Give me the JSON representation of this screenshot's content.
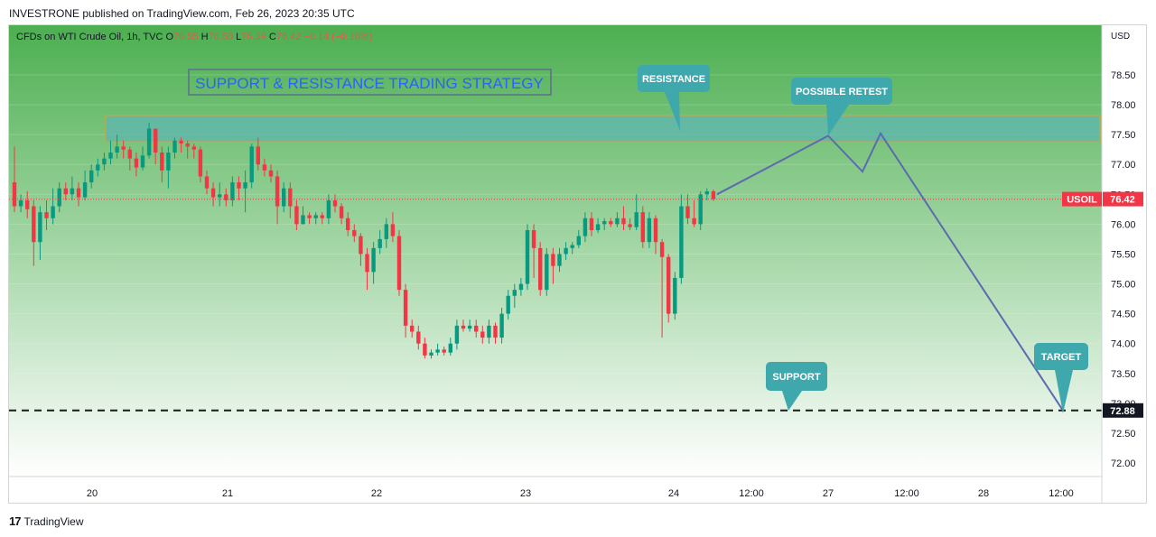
{
  "header": {
    "published": "INVESTRONE published on TradingView.com, Feb 26, 2023 20:35 UTC"
  },
  "symbol": {
    "name": "CFDs on WTI Crude Oil, 1h, TVC",
    "o_label": "O",
    "o_value": "76.55",
    "h_label": "H",
    "h_value": "76.58",
    "l_label": "L",
    "l_value": "76.39",
    "c_label": "C",
    "c_value": "76.42",
    "change": "−0.14 (−0.18%)"
  },
  "currency": "USD",
  "footer": {
    "brand": "TradingView",
    "logo_icon": "tradingview-logo-icon"
  },
  "colors": {
    "up": "#089981",
    "down": "#f23645",
    "bg_top": "#4caf50",
    "bg_bottom": "#ffffff",
    "zone_fill": "#5fb6b0",
    "zone_border": "#e0a030",
    "callout": "#3fa8ad",
    "projection": "#5c6bb0",
    "title_text": "#2962ff"
  },
  "chart_data": {
    "type": "candlestick",
    "symbol": "USOIL",
    "ylim": [
      71.75,
      79.25
    ],
    "y_ticks": [
      "72.00",
      "72.50",
      "73.00",
      "73.50",
      "74.00",
      "74.50",
      "75.00",
      "75.50",
      "76.00",
      "76.50",
      "77.00",
      "77.50",
      "78.00",
      "78.50"
    ],
    "x_ticks": [
      "20",
      "21",
      "22",
      "23",
      "24",
      "12:00",
      "27",
      "12:00",
      "28",
      "12:00"
    ],
    "last_price": {
      "label": "USOIL",
      "value": "76.42",
      "num": 76.42
    },
    "target_price": {
      "value": "72.88",
      "num": 72.88
    },
    "resistance_zone": [
      77.38,
      77.82
    ],
    "title_box": "SUPPORT & RESISTANCE TRADING STRATEGY",
    "annotations": [
      "RESISTANCE",
      "POSSIBLE RETEST",
      "SUPPORT",
      "TARGET"
    ],
    "projection_path": [
      76.5,
      77.48,
      76.88,
      77.52,
      72.88
    ],
    "candles": [
      [
        76.7,
        76.3,
        77.3,
        76.2
      ],
      [
        76.3,
        76.4,
        76.5,
        76.2
      ],
      [
        76.4,
        76.25,
        76.55,
        76.1
      ],
      [
        76.3,
        75.7,
        76.4,
        75.3
      ],
      [
        75.7,
        76.2,
        76.3,
        75.4
      ],
      [
        76.2,
        76.1,
        76.4,
        75.9
      ],
      [
        76.1,
        76.3,
        76.6,
        76.0
      ],
      [
        76.3,
        76.6,
        76.7,
        76.2
      ],
      [
        76.6,
        76.5,
        76.7,
        76.4
      ],
      [
        76.5,
        76.6,
        76.8,
        76.4
      ],
      [
        76.6,
        76.45,
        76.7,
        76.3
      ],
      [
        76.45,
        76.7,
        76.9,
        76.4
      ],
      [
        76.7,
        76.9,
        77.0,
        76.6
      ],
      [
        76.9,
        77.0,
        77.1,
        76.8
      ],
      [
        77.0,
        77.1,
        77.2,
        76.9
      ],
      [
        77.1,
        77.2,
        77.4,
        77.0
      ],
      [
        77.2,
        77.3,
        77.5,
        77.1
      ],
      [
        77.3,
        77.25,
        77.4,
        77.1
      ],
      [
        77.25,
        77.1,
        77.3,
        76.9
      ],
      [
        77.1,
        76.95,
        77.2,
        76.8
      ],
      [
        76.95,
        77.15,
        77.3,
        76.9
      ],
      [
        77.15,
        77.6,
        77.7,
        77.1
      ],
      [
        77.6,
        77.2,
        77.6,
        77.0
      ],
      [
        77.2,
        76.9,
        77.3,
        76.7
      ],
      [
        76.9,
        77.2,
        77.3,
        76.6
      ],
      [
        77.2,
        77.4,
        77.45,
        77.1
      ],
      [
        77.4,
        77.35,
        77.45,
        77.2
      ],
      [
        77.35,
        77.3,
        77.4,
        77.1
      ],
      [
        77.3,
        77.25,
        77.35,
        77.1
      ],
      [
        77.25,
        76.8,
        77.3,
        76.7
      ],
      [
        76.8,
        76.6,
        76.9,
        76.5
      ],
      [
        76.6,
        76.45,
        76.7,
        76.3
      ],
      [
        76.45,
        76.5,
        76.7,
        76.3
      ],
      [
        76.5,
        76.4,
        76.6,
        76.3
      ],
      [
        76.4,
        76.7,
        76.8,
        76.3
      ],
      [
        76.7,
        76.6,
        76.8,
        76.4
      ],
      [
        76.6,
        76.7,
        76.9,
        76.2
      ],
      [
        76.7,
        77.3,
        77.35,
        76.6
      ],
      [
        77.3,
        77.0,
        77.45,
        76.9
      ],
      [
        77.0,
        76.9,
        77.1,
        76.8
      ],
      [
        76.9,
        76.8,
        77.0,
        76.7
      ],
      [
        76.8,
        76.3,
        76.9,
        76.0
      ],
      [
        76.3,
        76.6,
        76.7,
        76.2
      ],
      [
        76.6,
        76.3,
        76.7,
        76.1
      ],
      [
        76.3,
        76.0,
        76.4,
        75.9
      ],
      [
        76.0,
        76.15,
        76.3,
        76.0
      ],
      [
        76.15,
        76.1,
        76.2,
        76.0
      ],
      [
        76.1,
        76.15,
        76.2,
        76.0
      ],
      [
        76.15,
        76.1,
        76.2,
        76.0
      ],
      [
        76.1,
        76.4,
        76.5,
        76.0
      ],
      [
        76.4,
        76.3,
        76.5,
        76.2
      ],
      [
        76.3,
        76.1,
        76.35,
        76.0
      ],
      [
        76.1,
        75.9,
        76.2,
        75.8
      ],
      [
        75.9,
        75.8,
        76.0,
        75.7
      ],
      [
        75.8,
        75.5,
        75.85,
        75.3
      ],
      [
        75.5,
        75.2,
        75.6,
        74.9
      ],
      [
        75.2,
        75.6,
        75.7,
        75.0
      ],
      [
        75.6,
        75.75,
        75.9,
        75.5
      ],
      [
        75.75,
        76.0,
        76.1,
        75.6
      ],
      [
        76.0,
        75.8,
        76.2,
        75.7
      ],
      [
        75.8,
        74.9,
        75.9,
        74.8
      ],
      [
        74.9,
        74.3,
        75.0,
        74.1
      ],
      [
        74.3,
        74.2,
        74.4,
        74.1
      ],
      [
        74.2,
        74.0,
        74.3,
        73.9
      ],
      [
        74.0,
        73.8,
        74.1,
        73.75
      ],
      [
        73.8,
        73.85,
        73.9,
        73.75
      ],
      [
        73.85,
        73.9,
        74.0,
        73.8
      ],
      [
        73.9,
        73.85,
        73.95,
        73.8
      ],
      [
        73.85,
        74.0,
        74.1,
        73.8
      ],
      [
        74.0,
        74.3,
        74.4,
        73.9
      ],
      [
        74.3,
        74.25,
        74.4,
        74.2
      ],
      [
        74.25,
        74.3,
        74.4,
        74.2
      ],
      [
        74.3,
        74.2,
        74.4,
        74.1
      ],
      [
        74.2,
        74.1,
        74.3,
        74.0
      ],
      [
        74.1,
        74.3,
        74.4,
        74.0
      ],
      [
        74.3,
        74.1,
        74.35,
        74.0
      ],
      [
        74.1,
        74.5,
        74.6,
        74.0
      ],
      [
        74.5,
        74.8,
        74.9,
        74.4
      ],
      [
        74.8,
        74.9,
        75.0,
        74.6
      ],
      [
        74.9,
        75.0,
        75.1,
        74.8
      ],
      [
        75.0,
        75.9,
        76.0,
        74.9
      ],
      [
        75.9,
        75.6,
        76.0,
        75.1
      ],
      [
        75.6,
        74.9,
        75.7,
        74.8
      ],
      [
        74.9,
        75.5,
        75.6,
        74.8
      ],
      [
        75.5,
        75.3,
        75.6,
        75.0
      ],
      [
        75.3,
        75.5,
        75.6,
        75.2
      ],
      [
        75.5,
        75.6,
        75.7,
        75.4
      ],
      [
        75.6,
        75.65,
        75.7,
        75.5
      ],
      [
        75.65,
        75.8,
        75.9,
        75.6
      ],
      [
        75.8,
        76.1,
        76.2,
        75.7
      ],
      [
        76.1,
        75.9,
        76.2,
        75.8
      ],
      [
        75.9,
        76.0,
        76.1,
        75.85
      ],
      [
        76.0,
        76.05,
        76.1,
        75.9
      ],
      [
        76.05,
        76.0,
        76.1,
        75.95
      ],
      [
        76.0,
        76.1,
        76.2,
        75.95
      ],
      [
        76.1,
        76.0,
        76.3,
        75.9
      ],
      [
        76.0,
        75.95,
        76.1,
        75.9
      ],
      [
        75.95,
        76.2,
        76.5,
        75.9
      ],
      [
        76.2,
        75.7,
        76.3,
        75.6
      ],
      [
        75.7,
        76.1,
        76.2,
        75.6
      ],
      [
        76.1,
        75.7,
        76.15,
        75.5
      ],
      [
        75.7,
        75.45,
        75.75,
        74.1
      ],
      [
        75.45,
        74.5,
        75.5,
        74.35
      ],
      [
        74.5,
        75.1,
        75.2,
        74.4
      ],
      [
        75.1,
        76.3,
        76.5,
        75.0
      ],
      [
        76.3,
        76.1,
        76.5,
        76.0
      ],
      [
        76.1,
        76.0,
        76.4,
        75.95
      ],
      [
        76.0,
        76.5,
        76.55,
        75.9
      ],
      [
        76.5,
        76.55,
        76.6,
        76.4
      ],
      [
        76.55,
        76.42,
        76.58,
        76.39
      ]
    ]
  }
}
